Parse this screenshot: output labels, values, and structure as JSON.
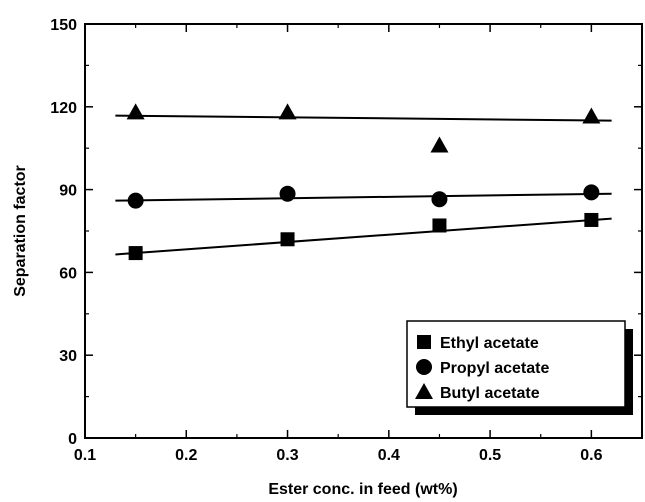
{
  "chart_data": {
    "type": "scatter",
    "xlabel": "Ester conc. in feed (wt%)",
    "ylabel": "Separation factor",
    "xlim": [
      0.1,
      0.65
    ],
    "ylim": [
      0,
      150
    ],
    "xticks": [
      0.1,
      0.2,
      0.3,
      0.4,
      0.5,
      0.6
    ],
    "yticks": [
      0,
      30,
      60,
      90,
      120,
      150
    ],
    "xtick_labels": [
      "0.1",
      "0.2",
      "0.3",
      "0.4",
      "0.5",
      "0.6"
    ],
    "ytick_labels": [
      "0",
      "30",
      "60",
      "90",
      "120",
      "150"
    ],
    "legend_position": "bottom-right",
    "series": [
      {
        "name": "Ethyl acetate",
        "marker": "square",
        "x": [
          0.15,
          0.3,
          0.45,
          0.6
        ],
        "y": [
          67,
          72,
          77,
          79
        ],
        "fit": {
          "x": [
            0.13,
            0.62
          ],
          "y": [
            66.5,
            79.5
          ]
        }
      },
      {
        "name": "Propyl acetate",
        "marker": "circle",
        "x": [
          0.15,
          0.3,
          0.45,
          0.6
        ],
        "y": [
          86,
          88.5,
          86.5,
          89
        ],
        "fit": {
          "x": [
            0.13,
            0.62
          ],
          "y": [
            86,
            88.5
          ]
        }
      },
      {
        "name": "Butyl acetate",
        "marker": "triangle",
        "x": [
          0.15,
          0.3,
          0.45,
          0.6
        ],
        "y": [
          118,
          118,
          106,
          116.5
        ],
        "fit": {
          "x": [
            0.13,
            0.62
          ],
          "y": [
            116.8,
            115
          ]
        }
      }
    ]
  }
}
